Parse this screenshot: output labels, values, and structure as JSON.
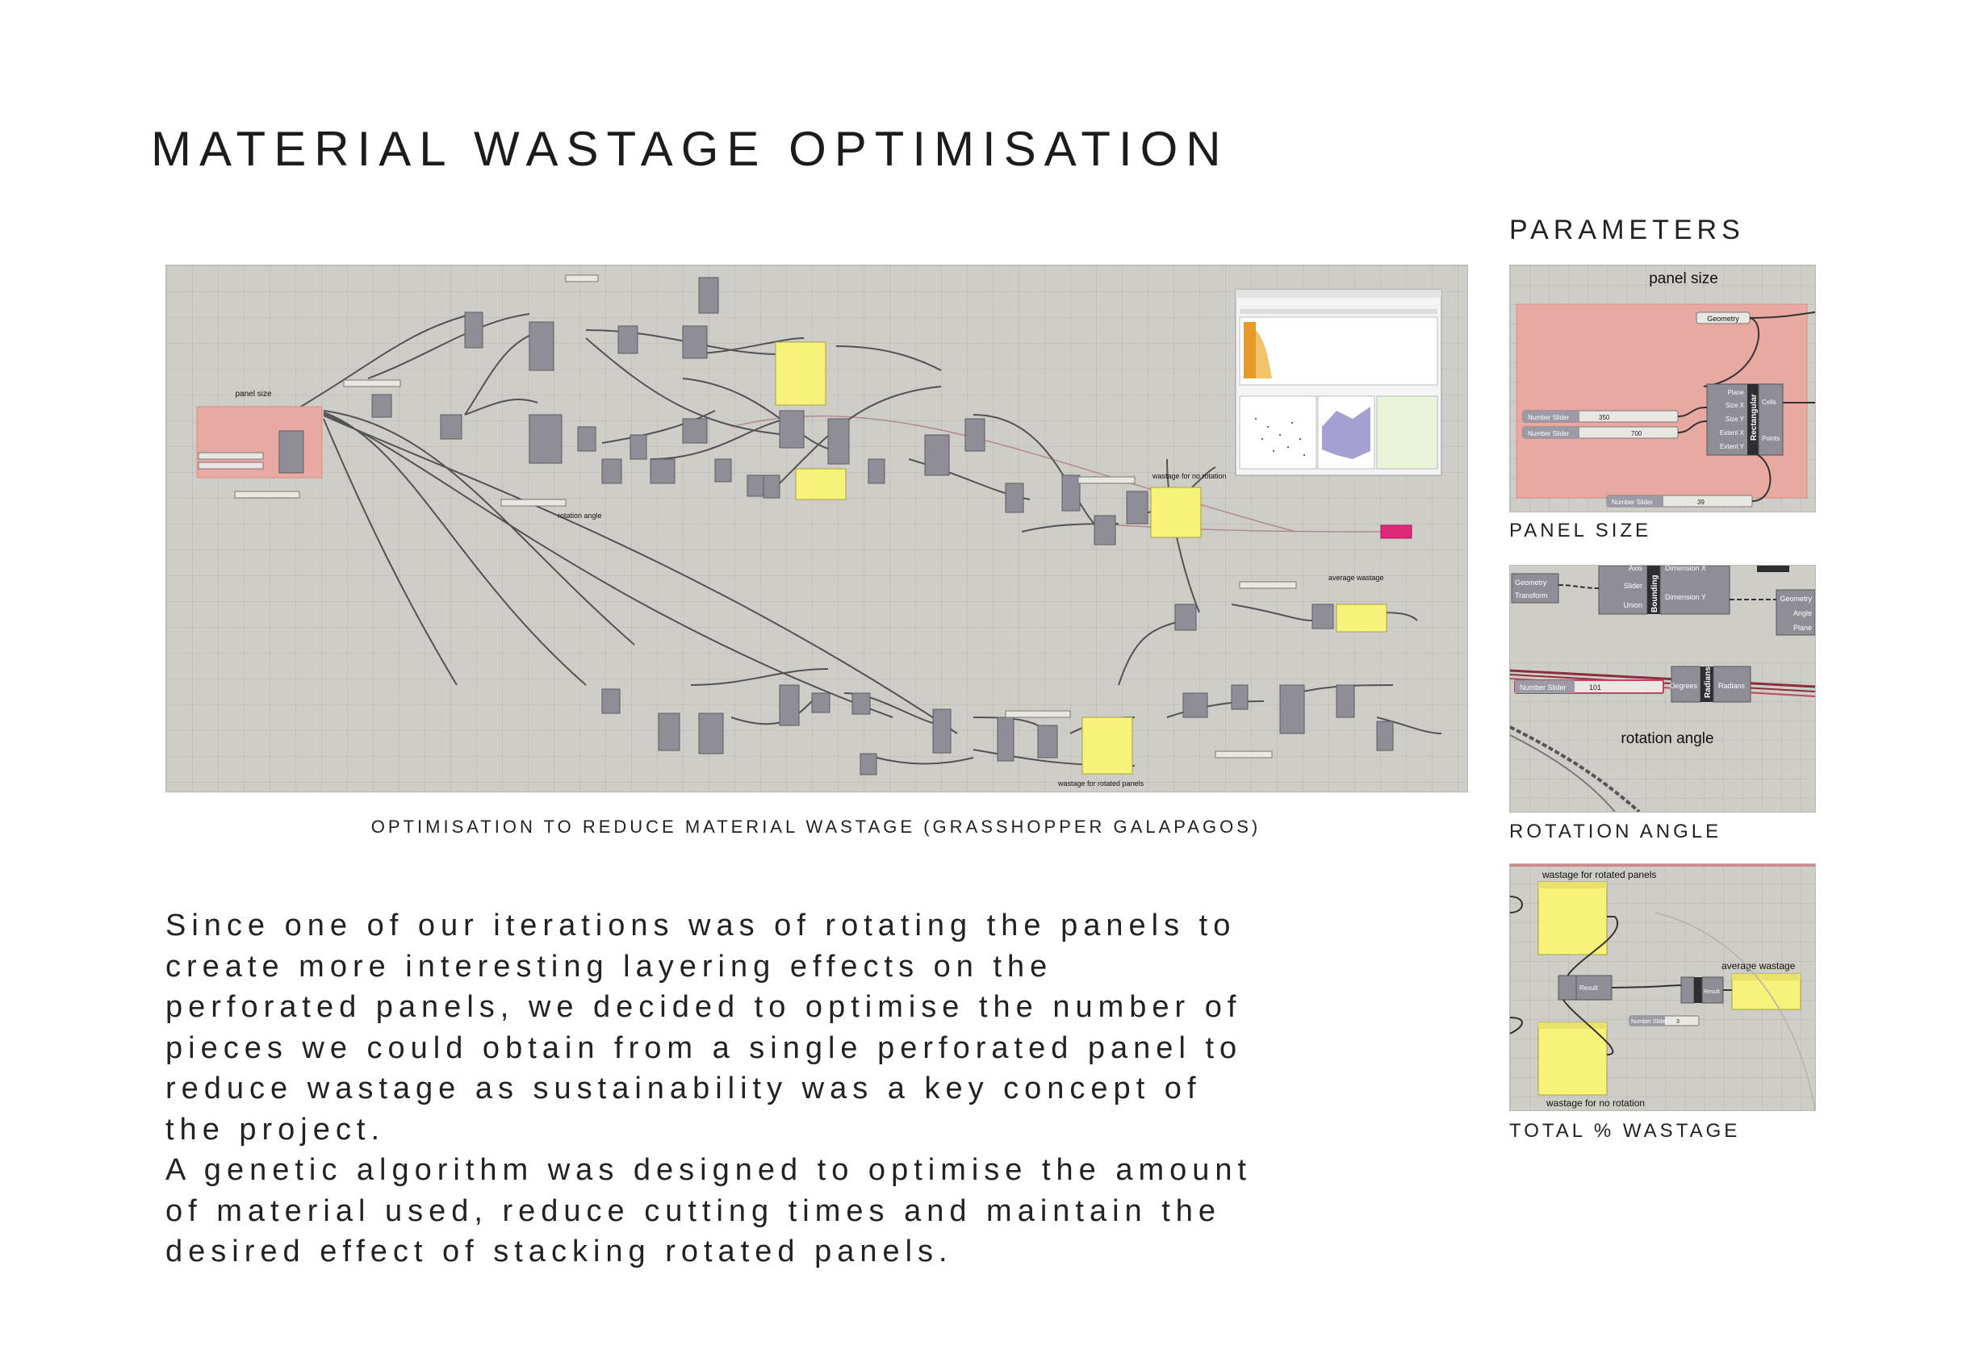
{
  "page": {
    "title": "MATERIAL WASTAGE OPTIMISATION",
    "parameters_heading": "PARAMETERS"
  },
  "main_figure": {
    "caption": "OPTIMISATION TO REDUCE MATERIAL WASTAGE (GRASSHOPPER GALAPAGOS)",
    "labels": {
      "panel_size": "panel size",
      "rotation_angle": "rotation angle",
      "wastage_no_rotation": "wastage for no rotation",
      "average_wastage": "average wastage",
      "wastage_rotated": "wastage for rotated panels"
    }
  },
  "body": {
    "lines": [
      "Since one of our iterations was of rotating the panels to",
      "create more interesting layering effects on the",
      "perforated panels, we decided to optimise the number of",
      "pieces we could obtain from a single perforated panel to",
      "reduce wastage as sustainability was a key concept of",
      "the project.",
      "A genetic algorithm was designed to optimise the amount",
      "of material used, reduce cutting times and maintain the",
      "desired effect of stacking rotated panels."
    ]
  },
  "thumb_panel_size": {
    "caption": "PANEL SIZE",
    "title": "panel size",
    "geometry": "Geometry",
    "slider_label": "Number Slider",
    "slider1_value": "350",
    "slider2_value": "700",
    "slider3_value": "39",
    "component": "Rectangular",
    "inputs": [
      "Plane",
      "Size X",
      "Size Y",
      "Extent X",
      "Extent Y"
    ],
    "outputs": [
      "Cells",
      "Points"
    ]
  },
  "thumb_rotation": {
    "caption": "ROTATION ANGLE",
    "title": "rotation angle",
    "left_inputs": [
      "Geometry",
      "Transform"
    ],
    "bounding_inputs": [
      "Axis",
      "Slider",
      "Union"
    ],
    "bounding": "Bounding",
    "bounding_outputs": [
      "Dimension X",
      "Dimension Y"
    ],
    "right_inputs": [
      "Geometry",
      "Angle",
      "Plane"
    ],
    "slider_label": "Number Slider",
    "slider_value": "101",
    "radians": "Radians",
    "degrees": "Degrees",
    "radians_out": "Radians"
  },
  "thumb_wastage": {
    "caption": "TOTAL % WASTAGE",
    "rotated": "wastage for rotated panels",
    "average": "average wastage",
    "no_rotation": "wastage for no rotation",
    "result": "Result",
    "slider_label": "Number Slider",
    "slider_value": "3"
  },
  "colors": {
    "canvas": "#cfcdc7",
    "group_pink": "#e8a9a2",
    "panel_yellow": "#f6f27a",
    "component": "#8f8d96",
    "accent_magenta": "#e0287a"
  }
}
